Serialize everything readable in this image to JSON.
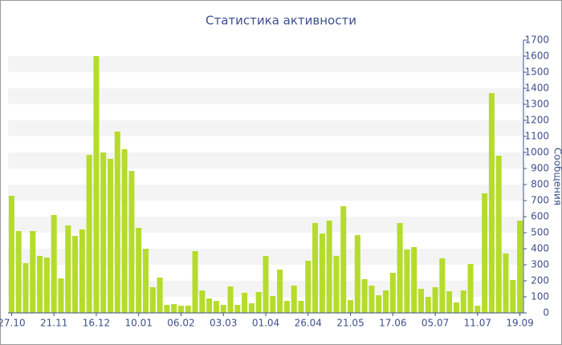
{
  "chart_data": {
    "type": "bar",
    "title": "Статистика активности",
    "y_label": "Сообщения",
    "categories": [
      "27.10",
      null,
      null,
      null,
      null,
      null,
      "21.11",
      null,
      null,
      null,
      null,
      null,
      "16.12",
      null,
      null,
      null,
      null,
      null,
      "10.01",
      null,
      null,
      null,
      null,
      null,
      "06.02",
      null,
      null,
      null,
      null,
      null,
      "03.03",
      null,
      null,
      null,
      null,
      null,
      "01.04",
      null,
      null,
      null,
      null,
      null,
      "26.04",
      null,
      null,
      null,
      null,
      null,
      "21.05",
      null,
      null,
      null,
      null,
      null,
      "17.06",
      null,
      null,
      null,
      null,
      null,
      "05.07",
      null,
      null,
      null,
      null,
      null,
      "11.07",
      null,
      null,
      null,
      null,
      null,
      "19.09"
    ],
    "values": [
      730,
      510,
      310,
      510,
      355,
      345,
      610,
      215,
      545,
      480,
      520,
      985,
      1600,
      1000,
      960,
      1130,
      1020,
      885,
      530,
      400,
      160,
      220,
      50,
      55,
      45,
      45,
      385,
      140,
      90,
      75,
      50,
      165,
      50,
      125,
      60,
      130,
      355,
      105,
      270,
      75,
      170,
      75,
      325,
      560,
      495,
      575,
      355,
      665,
      80,
      485,
      210,
      170,
      110,
      140,
      250,
      560,
      395,
      410,
      150,
      100,
      160,
      340,
      135,
      65,
      140,
      305,
      45,
      745,
      1370,
      980,
      370,
      205,
      575
    ],
    "color": "#b5dc2b",
    "ylim": [
      0,
      1700
    ],
    "yticks": [
      0,
      100,
      200,
      300,
      400,
      500,
      600,
      700,
      800,
      900,
      1000,
      1100,
      1200,
      1300,
      1400,
      1500,
      1600,
      1700
    ],
    "grid": "bands"
  }
}
